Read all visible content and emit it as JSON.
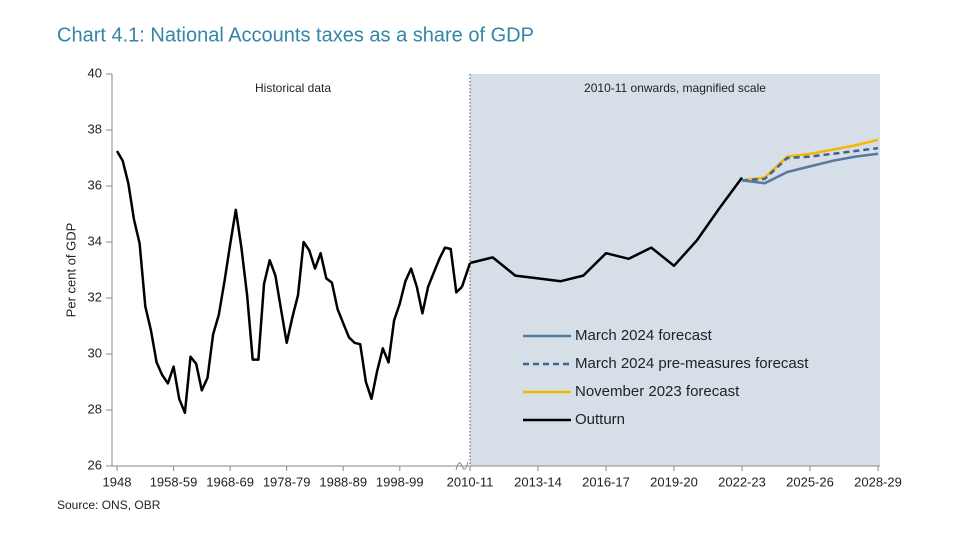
{
  "title": "Chart 4.1: National Accounts taxes as a share of GDP",
  "source": "Source: ONS, OBR",
  "chart_data": [
    {
      "type": "line",
      "annotation": "Historical data",
      "y_label": "Per cent of GDP",
      "ylim": [
        26,
        40
      ],
      "yticks": [
        26,
        28,
        30,
        32,
        34,
        36,
        38,
        40
      ],
      "categories": [
        "1948",
        null,
        null,
        null,
        null,
        null,
        null,
        null,
        null,
        null,
        "1958-59",
        null,
        null,
        null,
        null,
        null,
        null,
        null,
        null,
        null,
        "1968-69",
        null,
        null,
        null,
        null,
        null,
        null,
        null,
        null,
        null,
        "1978-79",
        null,
        null,
        null,
        null,
        null,
        null,
        null,
        null,
        null,
        "1988-89",
        null,
        null,
        null,
        null,
        null,
        null,
        null,
        null,
        null,
        "1998-99",
        null,
        null,
        null,
        null,
        null,
        null,
        null,
        null,
        null,
        null,
        null
      ],
      "values": [
        37.25,
        36.9,
        36.1,
        34.8,
        33.95,
        31.7,
        30.85,
        29.7,
        29.25,
        28.95,
        29.55,
        28.4,
        27.9,
        29.9,
        29.65,
        28.7,
        29.15,
        30.7,
        31.4,
        32.6,
        33.9,
        35.15,
        33.8,
        32.1,
        29.8,
        29.8,
        32.5,
        33.35,
        32.8,
        31.6,
        30.4,
        31.3,
        32.1,
        34.0,
        33.7,
        33.05,
        33.6,
        32.7,
        32.55,
        31.6,
        31.1,
        30.6,
        30.4,
        30.35,
        29.0,
        28.4,
        29.4,
        30.2,
        29.7,
        31.2,
        31.8,
        32.6,
        33.05,
        32.4,
        31.45,
        32.4,
        32.9,
        33.4,
        33.8,
        33.75,
        32.2,
        32.4
      ],
      "color": "#000000"
    },
    {
      "type": "line",
      "annotation": "2010-11 onwards, magnified scale",
      "ylim": [
        26,
        40
      ],
      "legend": "lower left",
      "categories": [
        "2010-11",
        null,
        null,
        "2013-14",
        null,
        null,
        "2016-17",
        null,
        null,
        "2019-20",
        null,
        null,
        "2022-23",
        null,
        null,
        "2025-26",
        null,
        null,
        "2028-29"
      ],
      "series": [
        {
          "name": "March 2024 forecast",
          "color": "#55799f",
          "line_style": "solid",
          "values": [
            null,
            null,
            null,
            null,
            null,
            null,
            null,
            null,
            null,
            null,
            null,
            null,
            36.2,
            36.1,
            36.5,
            36.7,
            36.9,
            37.05,
            37.15
          ]
        },
        {
          "name": "March 2024 pre-measures forecast",
          "color": "#3e6590",
          "line_style": "dashed",
          "values": [
            null,
            null,
            null,
            null,
            null,
            null,
            null,
            null,
            null,
            null,
            null,
            null,
            36.2,
            36.25,
            37.0,
            37.05,
            37.15,
            37.25,
            37.35
          ]
        },
        {
          "name": "November 2023 forecast",
          "color": "#f5b800",
          "line_style": "solid",
          "values": [
            null,
            null,
            null,
            null,
            null,
            null,
            null,
            null,
            null,
            null,
            null,
            null,
            36.2,
            36.3,
            37.05,
            37.15,
            37.3,
            37.45,
            37.65
          ]
        },
        {
          "name": "Outturn",
          "color": "#000000",
          "line_style": "solid",
          "values": [
            33.25,
            33.45,
            32.8,
            32.7,
            32.6,
            32.8,
            33.6,
            33.4,
            33.8,
            33.15,
            34.05,
            35.2,
            36.3,
            null,
            null,
            null,
            null,
            null,
            null
          ]
        }
      ]
    }
  ]
}
